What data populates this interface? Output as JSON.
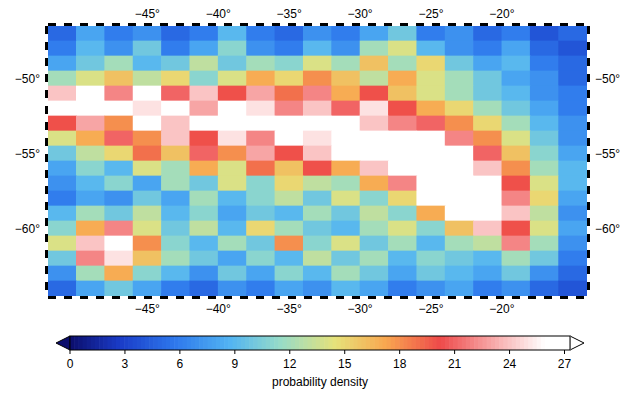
{
  "chart_data": {
    "type": "heatmap",
    "x": [
      -51,
      -49,
      -47,
      -45,
      -43,
      -41,
      -39,
      -37,
      -35,
      -33,
      -31,
      -29,
      -27,
      -25,
      -23,
      -21,
      -19,
      -17,
      -15
    ],
    "y": [
      -47,
      -48,
      -49,
      -50,
      -51,
      -52,
      -53,
      -54,
      -55,
      -56,
      -57,
      -58,
      -59,
      -60,
      -61,
      -62,
      -63,
      -64
    ],
    "values": [
      [
        5,
        8,
        6,
        7,
        5,
        6,
        9,
        6,
        5,
        7,
        6,
        8,
        10,
        6,
        7,
        5,
        6,
        4,
        5
      ],
      [
        6,
        9,
        7,
        10,
        6,
        8,
        11,
        7,
        6,
        9,
        7,
        12,
        14,
        9,
        7,
        6,
        8,
        5,
        4
      ],
      [
        8,
        10,
        12,
        9,
        10,
        13,
        10,
        12,
        11,
        14,
        12,
        16,
        12,
        15,
        10,
        8,
        9,
        6,
        5
      ],
      [
        12,
        14,
        16,
        13,
        15,
        11,
        14,
        17,
        15,
        18,
        16,
        13,
        17,
        14,
        12,
        10,
        8,
        7,
        5
      ],
      [
        24,
        27,
        22,
        26,
        21,
        24,
        20,
        23,
        19,
        22,
        17,
        20,
        16,
        14,
        12,
        10,
        9,
        7,
        6
      ],
      [
        28,
        26,
        28,
        25,
        27,
        23,
        28,
        25,
        22,
        24,
        21,
        25,
        20,
        17,
        15,
        12,
        10,
        8,
        6
      ],
      [
        20,
        23,
        18,
        27,
        24,
        28,
        26,
        28,
        27,
        28,
        26,
        24,
        22,
        21,
        18,
        15,
        12,
        9,
        7
      ],
      [
        14,
        17,
        21,
        18,
        24,
        20,
        25,
        22,
        27,
        25,
        28,
        28,
        28,
        26,
        22,
        18,
        14,
        10,
        7
      ],
      [
        10,
        13,
        15,
        19,
        16,
        21,
        18,
        23,
        20,
        24,
        26,
        27,
        28,
        28,
        26,
        21,
        16,
        11,
        8
      ],
      [
        8,
        11,
        9,
        14,
        12,
        17,
        14,
        19,
        16,
        20,
        17,
        24,
        28,
        28,
        28,
        24,
        18,
        12,
        9
      ],
      [
        7,
        9,
        11,
        8,
        12,
        10,
        14,
        11,
        15,
        13,
        12,
        17,
        22,
        28,
        28,
        27,
        20,
        14,
        9
      ],
      [
        6,
        8,
        7,
        10,
        8,
        12,
        9,
        11,
        13,
        10,
        14,
        11,
        15,
        26,
        28,
        28,
        22,
        15,
        8
      ],
      [
        9,
        12,
        10,
        13,
        9,
        11,
        8,
        10,
        9,
        12,
        10,
        13,
        11,
        17,
        26,
        28,
        24,
        13,
        7
      ],
      [
        11,
        17,
        22,
        14,
        10,
        13,
        9,
        15,
        12,
        10,
        9,
        12,
        14,
        11,
        16,
        24,
        20,
        14,
        8
      ],
      [
        14,
        24,
        27,
        18,
        11,
        9,
        12,
        10,
        18,
        11,
        14,
        10,
        12,
        9,
        12,
        13,
        22,
        12,
        7
      ],
      [
        10,
        22,
        25,
        16,
        12,
        10,
        8,
        11,
        9,
        13,
        10,
        12,
        9,
        11,
        10,
        9,
        12,
        10,
        6
      ],
      [
        7,
        12,
        17,
        11,
        9,
        7,
        10,
        8,
        11,
        9,
        12,
        10,
        8,
        10,
        9,
        8,
        10,
        7,
        5
      ],
      [
        5,
        8,
        10,
        8,
        6,
        5,
        7,
        6,
        8,
        7,
        9,
        8,
        6,
        7,
        8,
        6,
        7,
        5,
        4
      ]
    ],
    "xlim": [
      -52,
      -14
    ],
    "ylim": [
      -64.5,
      -46.5
    ],
    "xticks": [
      {
        "value": -45,
        "label": "−45°"
      },
      {
        "value": -40,
        "label": "−40°"
      },
      {
        "value": -35,
        "label": "−35°"
      },
      {
        "value": -30,
        "label": "−30°"
      },
      {
        "value": -25,
        "label": "−25°"
      },
      {
        "value": -20,
        "label": "−20°"
      }
    ],
    "yticks": [
      {
        "value": -50,
        "label": "−50°"
      },
      {
        "value": -55,
        "label": "−55°"
      },
      {
        "value": -60,
        "label": "−60°"
      }
    ],
    "colorbar": {
      "range": [
        0,
        27.3
      ],
      "ticks": [
        0,
        3,
        6,
        9,
        12,
        15,
        18,
        21,
        24,
        27
      ],
      "label": "probability density"
    }
  }
}
